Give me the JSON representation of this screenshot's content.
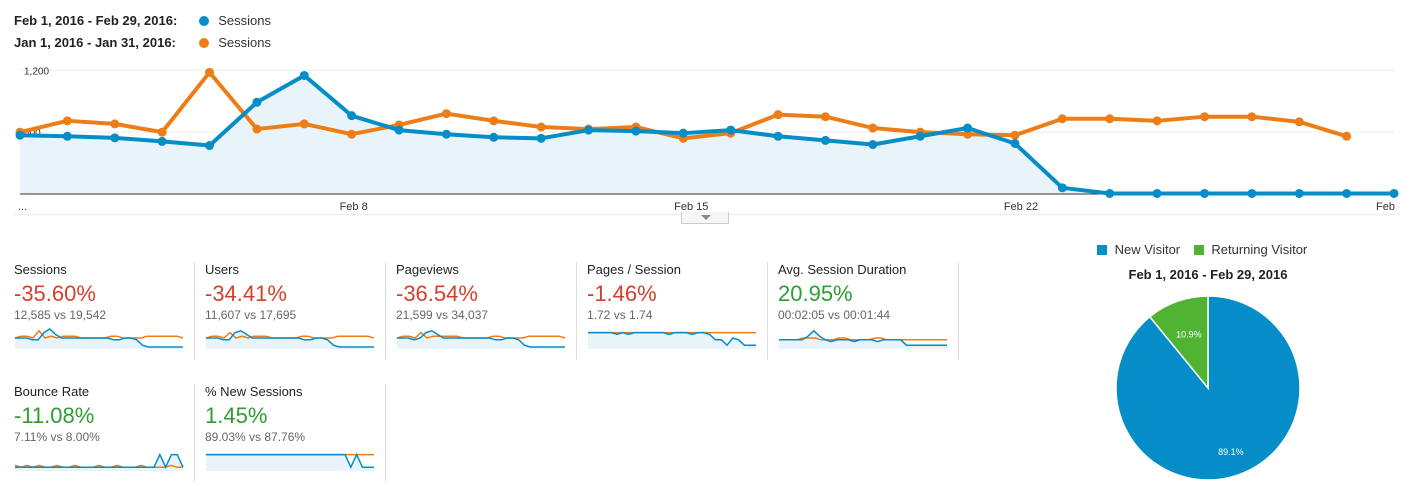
{
  "legend": {
    "current": {
      "range": "Feb 1, 2016 - Feb 29, 2016:",
      "metric": "Sessions",
      "color": "#058dc7"
    },
    "previous": {
      "range": "Jan 1, 2016 - Jan 31, 2016:",
      "metric": "Sessions",
      "color": "#ed7e17"
    }
  },
  "chart_data": [
    {
      "type": "line",
      "y_ticks": [
        "1,200",
        "600"
      ],
      "ylim": [
        0,
        1300
      ],
      "x_tick_labels": [
        "...",
        "Feb 8",
        "Feb 15",
        "Feb 22",
        "Feb"
      ],
      "series": [
        {
          "name": "Sessions",
          "color": "#058dc7",
          "fill": true,
          "values": [
            570,
            560,
            545,
            510,
            470,
            890,
            1150,
            760,
            620,
            580,
            550,
            540,
            620,
            610,
            590,
            620,
            560,
            520,
            480,
            560,
            640,
            490,
            60,
            5,
            5,
            5,
            5,
            5,
            5,
            5
          ]
        },
        {
          "name": "Sessions",
          "color": "#ed7e17",
          "fill": false,
          "values": [
            600,
            710,
            680,
            600,
            1180,
            630,
            680,
            580,
            670,
            780,
            710,
            650,
            630,
            650,
            540,
            590,
            770,
            750,
            640,
            600,
            580,
            570,
            730,
            730,
            710,
            750,
            750,
            700,
            560
          ]
        }
      ]
    },
    {
      "type": "pie",
      "title": "Feb 1, 2016 - Feb 29, 2016",
      "slices": [
        {
          "label": "New Visitor",
          "value": 89.1,
          "display": "89.1%",
          "color": "#058dc7"
        },
        {
          "label": "Returning Visitor",
          "value": 10.9,
          "display": "10.9%",
          "color": "#50b432"
        }
      ]
    }
  ],
  "metrics": [
    {
      "name": "Sessions",
      "change": "-35.60%",
      "direction": "neg",
      "compare": "12,585 vs 19,542",
      "spark_cur": [
        5,
        5,
        5,
        4,
        4,
        8,
        10,
        7,
        5,
        5,
        5,
        5,
        5,
        5,
        5,
        5,
        5,
        4,
        4,
        5,
        5,
        4,
        1,
        0,
        0,
        0,
        0,
        0,
        0,
        0
      ],
      "spark_prev": [
        5,
        6,
        6,
        5,
        9,
        5,
        6,
        5,
        6,
        6,
        6,
        5,
        5,
        5,
        5,
        5,
        6,
        6,
        5,
        5,
        5,
        5,
        6,
        6,
        6,
        6,
        6,
        6,
        5
      ]
    },
    {
      "name": "Users",
      "change": "-34.41%",
      "direction": "neg",
      "compare": "11,607 vs 17,695",
      "spark_cur": [
        5,
        5,
        5,
        4,
        4,
        8,
        9,
        7,
        5,
        5,
        5,
        5,
        5,
        5,
        5,
        5,
        5,
        4,
        4,
        5,
        5,
        4,
        1,
        0,
        0,
        0,
        0,
        0,
        0,
        0
      ],
      "spark_prev": [
        5,
        6,
        6,
        5,
        8,
        5,
        6,
        5,
        6,
        6,
        6,
        5,
        5,
        5,
        5,
        5,
        6,
        6,
        5,
        5,
        5,
        5,
        6,
        6,
        6,
        6,
        6,
        6,
        5
      ]
    },
    {
      "name": "Pageviews",
      "change": "-36.54%",
      "direction": "neg",
      "compare": "21,599 vs 34,037",
      "spark_cur": [
        5,
        5,
        5,
        4,
        5,
        8,
        9,
        7,
        5,
        5,
        5,
        5,
        5,
        5,
        5,
        5,
        5,
        4,
        4,
        5,
        5,
        4,
        1,
        0,
        0,
        0,
        0,
        0,
        0,
        0
      ],
      "spark_prev": [
        5,
        6,
        6,
        5,
        8,
        5,
        6,
        6,
        6,
        6,
        6,
        5,
        5,
        5,
        5,
        5,
        6,
        6,
        5,
        5,
        5,
        5,
        6,
        6,
        6,
        6,
        6,
        6,
        5
      ]
    },
    {
      "name": "Pages / Session",
      "change": "-1.46%",
      "direction": "neg",
      "compare": "1.72 vs 1.74",
      "spark_cur": [
        8,
        8,
        8,
        8,
        8,
        7,
        8,
        7,
        8,
        8,
        8,
        8,
        8,
        8,
        7,
        8,
        8,
        8,
        7,
        8,
        8,
        7,
        4,
        4,
        1,
        5,
        4,
        1,
        1,
        1
      ],
      "spark_prev": [
        8,
        8,
        8,
        8,
        8,
        8,
        8,
        8,
        8,
        8,
        8,
        8,
        8,
        8,
        8,
        8,
        8,
        8,
        8,
        8,
        8,
        8,
        8,
        8,
        8,
        8,
        8,
        8,
        8
      ]
    },
    {
      "name": "Avg. Session Duration",
      "change": "20.95%",
      "direction": "pos",
      "compare": "00:02:05 vs 00:01:44",
      "spark_cur": [
        4,
        4,
        4,
        4,
        4,
        6,
        9,
        6,
        4,
        3,
        4,
        4,
        4,
        3,
        4,
        4,
        4,
        3,
        4,
        4,
        4,
        4,
        1,
        1,
        1,
        1,
        1,
        1,
        1,
        1
      ],
      "spark_prev": [
        4,
        4,
        4,
        4,
        5,
        5,
        5,
        4,
        4,
        4,
        5,
        5,
        4,
        4,
        4,
        4,
        5,
        5,
        4,
        4,
        4,
        4,
        4,
        4,
        4,
        4,
        4,
        4,
        4
      ]
    },
    {
      "name": "Bounce Rate",
      "change": "-11.08%",
      "direction": "pos",
      "compare": "7.11% vs 8.00%",
      "spark_cur": [
        1,
        1,
        1,
        1,
        1,
        1,
        1,
        1,
        1,
        1,
        1,
        1,
        1,
        1,
        1,
        1,
        1,
        1,
        1,
        1,
        1,
        1,
        1,
        1,
        1,
        8,
        1,
        8,
        8,
        1
      ],
      "spark_prev": [
        2,
        1,
        2,
        1,
        2,
        1,
        1,
        2,
        1,
        1,
        2,
        1,
        1,
        1,
        2,
        1,
        1,
        2,
        1,
        1,
        1,
        2,
        1,
        1,
        1,
        1,
        2,
        1,
        1
      ]
    },
    {
      "name": "% New Sessions",
      "change": "1.45%",
      "direction": "pos",
      "compare": "89.03% vs 87.76%",
      "spark_cur": [
        8,
        8,
        8,
        8,
        8,
        8,
        8,
        8,
        8,
        8,
        8,
        8,
        8,
        8,
        8,
        8,
        8,
        8,
        8,
        8,
        8,
        8,
        8,
        8,
        8,
        1,
        8,
        1,
        1,
        1
      ],
      "spark_prev": [
        8,
        8,
        8,
        8,
        8,
        8,
        8,
        8,
        8,
        8,
        8,
        8,
        8,
        8,
        8,
        8,
        8,
        8,
        8,
        8,
        8,
        8,
        8,
        8,
        8,
        8,
        8,
        8,
        8
      ]
    }
  ]
}
